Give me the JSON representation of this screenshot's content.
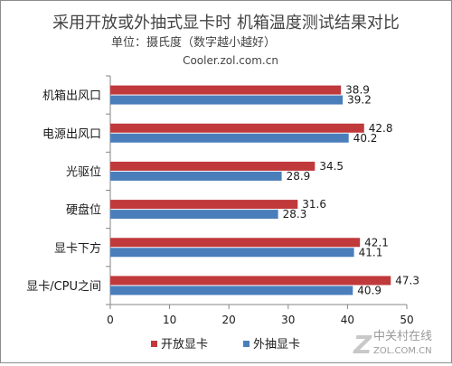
{
  "colors": {
    "series_open": "#c0393b",
    "series_extract": "#4a7ebb",
    "axis": "#868686",
    "text": "#1a1a1a",
    "title": "#444444",
    "watermark": "#9a9a9a"
  },
  "watermark": {
    "text": "中关村在线",
    "url": "ZOL.COM.CN"
  },
  "chart_data": {
    "type": "bar",
    "orientation": "horizontal",
    "title": "采用开放或外抽式显卡时 机箱温度测试结果对比",
    "subtitle": "单位：摄氏度（数字越小越好）",
    "source": "Cooler.zol.com.cn",
    "categories": [
      "机箱出风口",
      "电源出风口",
      "光驱位",
      "硬盘位",
      "显卡下方",
      "显卡/CPU之间"
    ],
    "series": [
      {
        "name": "开放显卡",
        "values": [
          38.9,
          42.8,
          34.5,
          31.6,
          42.1,
          47.3
        ],
        "color": "#c0393b"
      },
      {
        "name": "外抽显卡",
        "values": [
          39.2,
          40.2,
          28.9,
          28.3,
          41.1,
          40.9
        ],
        "color": "#4a7ebb"
      }
    ],
    "xlim": [
      0,
      50
    ],
    "xticks": [
      "0",
      "10",
      "20",
      "30",
      "40",
      "50"
    ],
    "grid": false,
    "legend_position": "bottom",
    "data_labels": true
  }
}
